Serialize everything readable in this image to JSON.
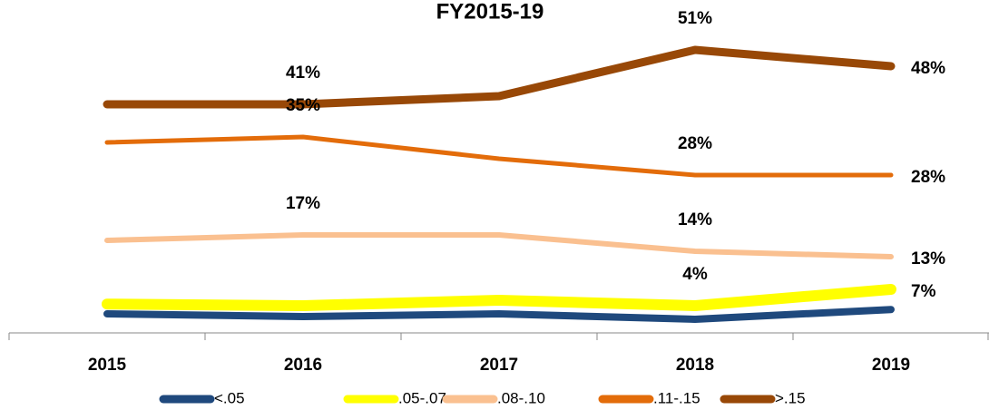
{
  "chart_data": {
    "type": "line",
    "title": "FY2015-19",
    "categories": [
      "2015",
      "2016",
      "2017",
      "2018",
      "2019"
    ],
    "series": [
      {
        "name": "<.05",
        "color": "#1f497d",
        "values": [
          2.5,
          2,
          2.5,
          1.5,
          3.3
        ],
        "value_labels": [
          null,
          null,
          null,
          null,
          null
        ]
      },
      {
        "name": ".05-.07",
        "color": "#ffff00",
        "values": [
          4.3,
          4,
          5,
          4,
          7
        ],
        "value_labels": [
          null,
          null,
          null,
          "4%",
          "7%"
        ]
      },
      {
        "name": ".08-.10",
        "color": "#fac090",
        "values": [
          16,
          17,
          17,
          14,
          13
        ],
        "value_labels": [
          null,
          "17%",
          null,
          "14%",
          "13%"
        ]
      },
      {
        "name": ".11-.15",
        "color": "#e36c0a",
        "values": [
          34,
          35,
          31,
          28,
          28
        ],
        "value_labels": [
          null,
          "35%",
          null,
          "28%",
          "28%"
        ]
      },
      {
        "name": ">.15",
        "color": "#984807",
        "values": [
          41,
          41,
          42.5,
          51,
          48
        ],
        "value_labels": [
          null,
          "41%",
          null,
          "51%",
          "48%"
        ]
      }
    ],
    "ylim": [
      -1,
      55
    ],
    "legend": "bottom"
  }
}
